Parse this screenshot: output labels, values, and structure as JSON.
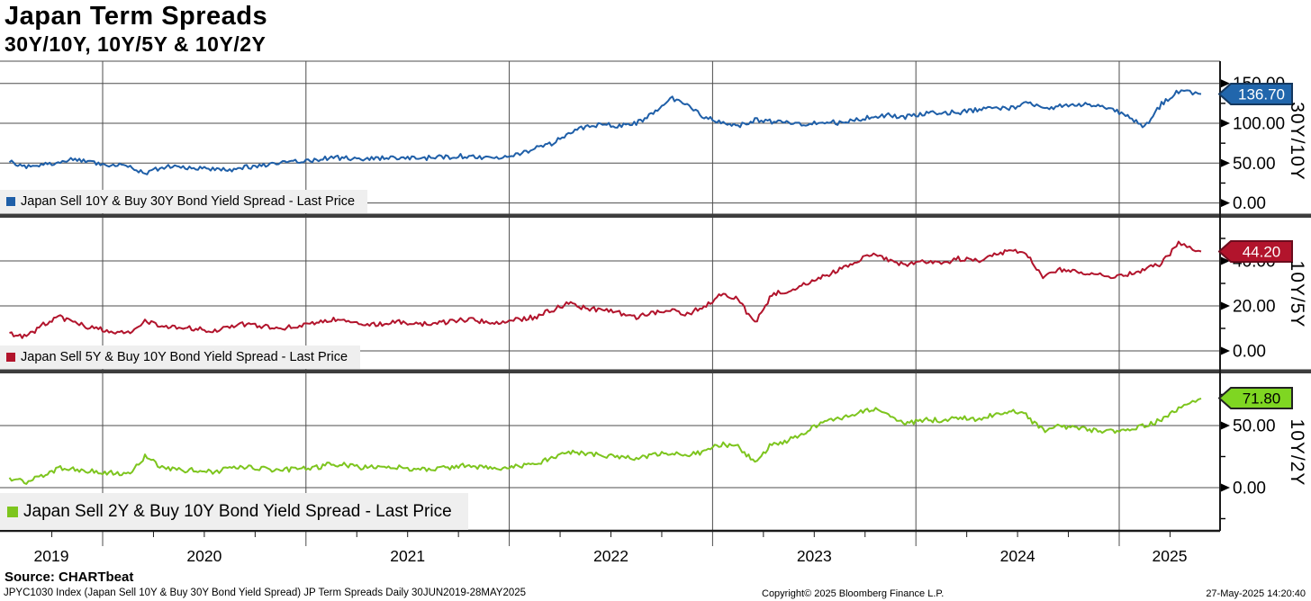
{
  "title": "Japan Term Spreads",
  "subtitle": "30Y/10Y, 10Y/5Y & 10Y/2Y",
  "footer": {
    "source_label": "Source: CHARTbeat",
    "ticker_line": "JPYC1030 Index (Japan Sell 10Y & Buy 30Y Bond Yield Spread) JP Term Spreads  Daily 30JUN2019-28MAY2025",
    "copyright": "Copyright© 2025 Bloomberg Finance L.P.",
    "timestamp": "27-May-2025 14:20:40"
  },
  "x_axis": {
    "years": [
      "2019",
      "2020",
      "2021",
      "2022",
      "2023",
      "2024",
      "2025"
    ]
  },
  "colors": {
    "gridline": "#4d4d4d",
    "axis": "#1a1a1a",
    "separator": "#3d3d3d",
    "legend_bg": "#efefef",
    "text": "#000000"
  },
  "chart_data": [
    {
      "type": "line",
      "name": "30Y/10Y",
      "axis_title": "30Y/10Y",
      "legend": "Japan Sell 10Y & Buy 30Y Bond Yield Spread - Last Price",
      "color": "#1f5fa8",
      "flag": {
        "bg": "#2166ac",
        "border": "#14375e",
        "text_color": "#ffffff"
      },
      "last_price": "136.70",
      "last_price_value": 136.7,
      "ylim": [
        -14,
        170
      ],
      "y_ticks": [
        {
          "v": 0,
          "label": "0.00"
        },
        {
          "v": 50,
          "label": "50.00"
        },
        {
          "v": 100,
          "label": "100.00"
        },
        {
          "v": 150,
          "label": "150.00"
        }
      ],
      "y_minor_ticks": [
        25,
        75,
        125
      ],
      "x": [
        "2019-07",
        "2019-08",
        "2019-09",
        "2019-10",
        "2019-11",
        "2019-12",
        "2020-01",
        "2020-02",
        "2020-03",
        "2020-04",
        "2020-05",
        "2020-06",
        "2020-07",
        "2020-08",
        "2020-09",
        "2020-10",
        "2020-11",
        "2020-12",
        "2021-01",
        "2021-02",
        "2021-03",
        "2021-04",
        "2021-05",
        "2021-06",
        "2021-07",
        "2021-08",
        "2021-09",
        "2021-10",
        "2021-11",
        "2021-12",
        "2022-01",
        "2022-02",
        "2022-03",
        "2022-04",
        "2022-05",
        "2022-06",
        "2022-07",
        "2022-08",
        "2022-09",
        "2022-10",
        "2022-11",
        "2022-12",
        "2023-01",
        "2023-02",
        "2023-03",
        "2023-04",
        "2023-05",
        "2023-06",
        "2023-07",
        "2023-08",
        "2023-09",
        "2023-10",
        "2023-11",
        "2023-12",
        "2024-01",
        "2024-02",
        "2024-03",
        "2024-04",
        "2024-05",
        "2024-06",
        "2024-07",
        "2024-08",
        "2024-09",
        "2024-10",
        "2024-11",
        "2024-12",
        "2025-01",
        "2025-02",
        "2025-03",
        "2025-04",
        "2025-05"
      ],
      "values": [
        51,
        46,
        48,
        52,
        55,
        51,
        48,
        46,
        38,
        45,
        46,
        44,
        43,
        42,
        45,
        47,
        50,
        52,
        54,
        57,
        56,
        55,
        56,
        57,
        56,
        57,
        58,
        59,
        57,
        58,
        62,
        68,
        74,
        88,
        95,
        98,
        97,
        100,
        112,
        133,
        122,
        108,
        102,
        96,
        104,
        102,
        100,
        98,
        103,
        100,
        105,
        108,
        110,
        108,
        112,
        114,
        113,
        117,
        120,
        118,
        125,
        119,
        121,
        124,
        122,
        118,
        110,
        95,
        124,
        140,
        136.7
      ]
    },
    {
      "type": "line",
      "name": "10Y/5Y",
      "axis_title": "10Y/5Y",
      "legend": "Japan Sell 5Y & Buy 10Y Bond Yield Spread - Last Price",
      "color": "#b2142c",
      "flag": {
        "bg": "#b2142c",
        "border": "#6b0c1d",
        "text_color": "#ffffff"
      },
      "last_price": "44.20",
      "last_price_value": 44.2,
      "ylim": [
        -8.4,
        59.2
      ],
      "y_ticks": [
        {
          "v": 0,
          "label": "0.00"
        },
        {
          "v": 20,
          "label": "20.00"
        },
        {
          "v": 40,
          "label": "40.00"
        }
      ],
      "y_minor_ticks": [
        10,
        30,
        50
      ],
      "x": [
        "2019-07",
        "2019-08",
        "2019-09",
        "2019-10",
        "2019-11",
        "2019-12",
        "2020-01",
        "2020-02",
        "2020-03",
        "2020-04",
        "2020-05",
        "2020-06",
        "2020-07",
        "2020-08",
        "2020-09",
        "2020-10",
        "2020-11",
        "2020-12",
        "2021-01",
        "2021-02",
        "2021-03",
        "2021-04",
        "2021-05",
        "2021-06",
        "2021-07",
        "2021-08",
        "2021-09",
        "2021-10",
        "2021-11",
        "2021-12",
        "2022-01",
        "2022-02",
        "2022-03",
        "2022-04",
        "2022-05",
        "2022-06",
        "2022-07",
        "2022-08",
        "2022-09",
        "2022-10",
        "2022-11",
        "2022-12",
        "2023-01",
        "2023-02",
        "2023-03",
        "2023-04",
        "2023-05",
        "2023-06",
        "2023-07",
        "2023-08",
        "2023-09",
        "2023-10",
        "2023-11",
        "2023-12",
        "2024-01",
        "2024-02",
        "2024-03",
        "2024-04",
        "2024-05",
        "2024-06",
        "2024-07",
        "2024-08",
        "2024-09",
        "2024-10",
        "2024-11",
        "2024-12",
        "2025-01",
        "2025-02",
        "2025-03",
        "2025-04",
        "2025-05"
      ],
      "values": [
        8,
        6,
        12,
        15,
        12,
        10,
        9,
        8,
        13,
        11,
        10,
        10,
        9,
        11,
        12,
        11,
        10,
        11,
        12,
        14,
        13,
        12,
        12,
        13,
        12,
        12,
        13,
        14,
        13,
        13,
        14,
        15,
        18,
        21,
        19,
        18,
        17,
        15,
        17,
        18,
        16,
        20,
        25,
        23,
        12,
        25,
        27,
        30,
        33,
        36,
        40,
        43,
        40,
        38,
        40,
        39,
        41,
        40,
        42,
        45,
        43,
        33,
        36,
        35,
        34,
        33,
        34,
        36,
        39,
        48,
        44.2
      ]
    },
    {
      "type": "line",
      "name": "10Y/2Y",
      "axis_title": "10Y/2Y",
      "legend": "Japan Sell 2Y & Buy 10Y Bond Yield Spread - Last Price",
      "color": "#7dc51e",
      "flag": {
        "bg": "#7fd622",
        "border": "#222222",
        "text_color": "#000000"
      },
      "last_price": "71.80",
      "last_price_value": 71.8,
      "ylim": [
        -34.8,
        92
      ],
      "y_ticks": [
        {
          "v": 0,
          "label": "0.00"
        },
        {
          "v": 50,
          "label": "50.00"
        }
      ],
      "y_minor_ticks": [
        -25,
        25,
        75
      ],
      "x": [
        "2019-07",
        "2019-08",
        "2019-09",
        "2019-10",
        "2019-11",
        "2019-12",
        "2020-01",
        "2020-02",
        "2020-03",
        "2020-04",
        "2020-05",
        "2020-06",
        "2020-07",
        "2020-08",
        "2020-09",
        "2020-10",
        "2020-11",
        "2020-12",
        "2021-01",
        "2021-02",
        "2021-03",
        "2021-04",
        "2021-05",
        "2021-06",
        "2021-07",
        "2021-08",
        "2021-09",
        "2021-10",
        "2021-11",
        "2021-12",
        "2022-01",
        "2022-02",
        "2022-03",
        "2022-04",
        "2022-05",
        "2022-06",
        "2022-07",
        "2022-08",
        "2022-09",
        "2022-10",
        "2022-11",
        "2022-12",
        "2023-01",
        "2023-02",
        "2023-03",
        "2023-04",
        "2023-05",
        "2023-06",
        "2023-07",
        "2023-08",
        "2023-09",
        "2023-10",
        "2023-11",
        "2023-12",
        "2024-01",
        "2024-02",
        "2024-03",
        "2024-04",
        "2024-05",
        "2024-06",
        "2024-07",
        "2024-08",
        "2024-09",
        "2024-10",
        "2024-11",
        "2024-12",
        "2025-01",
        "2025-02",
        "2025-03",
        "2025-04",
        "2025-05"
      ],
      "values": [
        8,
        4,
        10,
        16,
        14,
        13,
        12,
        11,
        25,
        16,
        14,
        14,
        13,
        15,
        16,
        15,
        14,
        15,
        16,
        19,
        18,
        16,
        16,
        16,
        15,
        15,
        16,
        18,
        16,
        15,
        17,
        19,
        24,
        29,
        27,
        26,
        25,
        23,
        27,
        28,
        26,
        29,
        35,
        33,
        20,
        35,
        38,
        45,
        52,
        55,
        60,
        63,
        57,
        52,
        55,
        54,
        57,
        55,
        58,
        62,
        58,
        46,
        50,
        48,
        46,
        45,
        46,
        50,
        55,
        64,
        71.8
      ]
    }
  ]
}
